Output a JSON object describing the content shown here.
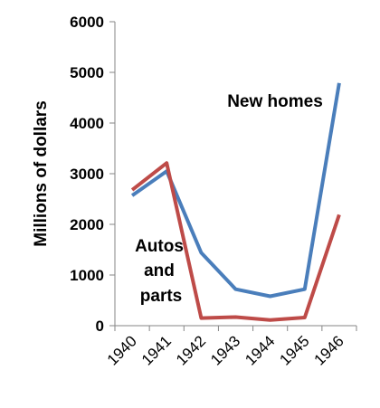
{
  "chart_data": {
    "type": "line",
    "title": "",
    "xlabel": "",
    "ylabel": "Millions of dollars",
    "ylim": [
      0,
      6000
    ],
    "yticks": [
      "0",
      "1000",
      "2000",
      "3000",
      "4000",
      "5000",
      "6000"
    ],
    "categories": [
      "1940",
      "1941",
      "1942",
      "1943",
      "1944",
      "1945",
      "1946"
    ],
    "series": [
      {
        "name": "New homes",
        "color": "#4a7ebb",
        "values": [
          2570,
          3050,
          1440,
          720,
          580,
          720,
          4790
        ]
      },
      {
        "name": "Autos and parts",
        "color": "#be4b48",
        "values": [
          2680,
          3210,
          150,
          170,
          110,
          160,
          2190
        ]
      }
    ],
    "annotations": {
      "new_homes": "New homes",
      "autos_line1": "Autos",
      "autos_line2": "and",
      "autos_line3": "parts"
    },
    "grid": false,
    "legend": "none"
  }
}
